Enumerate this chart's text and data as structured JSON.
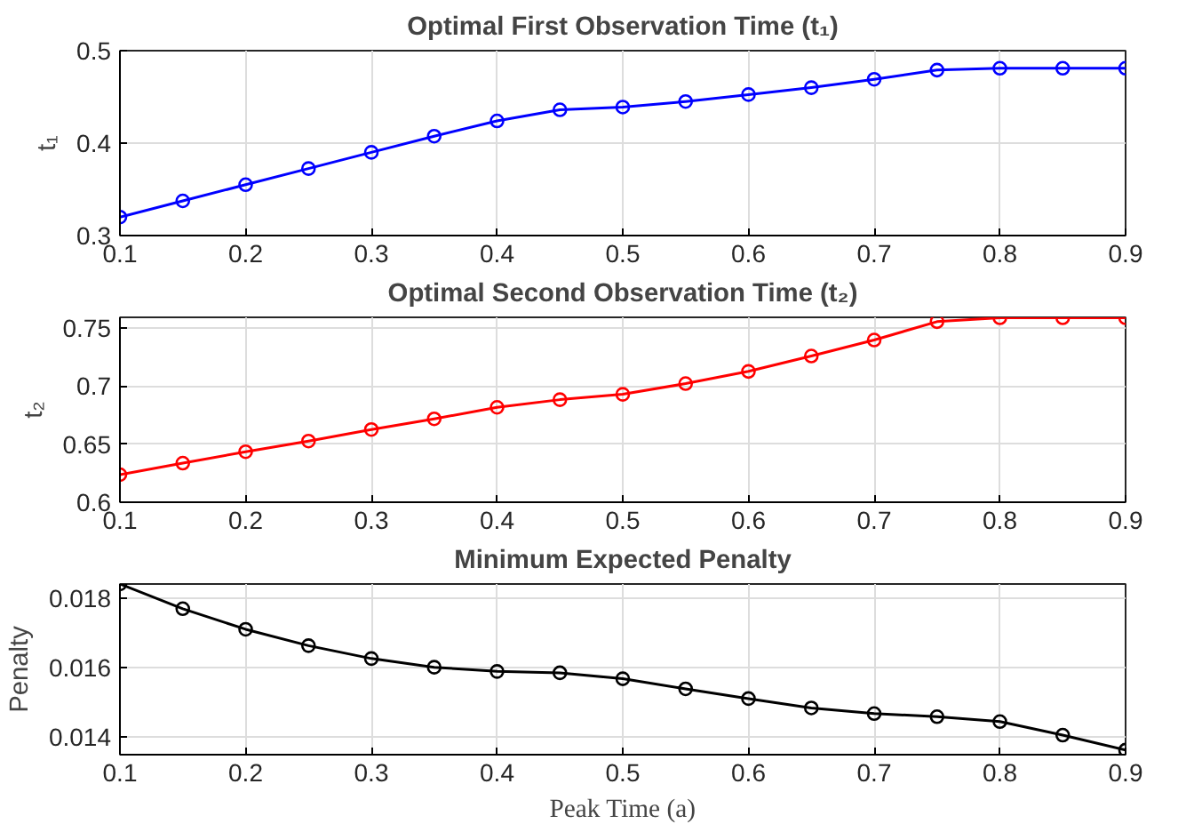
{
  "chart_data": [
    {
      "type": "line",
      "title": "Optimal First Observation Time (t₁)",
      "ylabel": "t₁",
      "x": [
        0.1,
        0.15,
        0.2,
        0.25,
        0.3,
        0.35,
        0.4,
        0.45,
        0.5,
        0.55,
        0.6,
        0.65,
        0.7,
        0.75,
        0.8,
        0.85,
        0.9
      ],
      "xlim": [
        0.1,
        0.9
      ],
      "xticks": [
        0.1,
        0.2,
        0.3,
        0.4,
        0.5,
        0.6,
        0.7,
        0.8,
        0.9
      ],
      "ylim": [
        0.3,
        0.5
      ],
      "yticks": [
        0.3,
        0.4,
        0.5
      ],
      "grid": true,
      "marker": "circle",
      "series": [
        {
          "color": "#0000ff",
          "values": [
            0.32,
            0.3375,
            0.355,
            0.3725,
            0.39,
            0.4075,
            0.424,
            0.436,
            0.439,
            0.445,
            0.4525,
            0.46,
            0.469,
            0.479,
            0.481,
            0.481,
            0.481
          ]
        }
      ]
    },
    {
      "type": "line",
      "title": "Optimal Second Observation Time (t₂)",
      "ylabel": "t₂",
      "x": [
        0.1,
        0.15,
        0.2,
        0.25,
        0.3,
        0.35,
        0.4,
        0.45,
        0.5,
        0.55,
        0.6,
        0.65,
        0.7,
        0.75,
        0.8,
        0.85,
        0.9
      ],
      "xlim": [
        0.1,
        0.9
      ],
      "xticks": [
        0.1,
        0.2,
        0.3,
        0.4,
        0.5,
        0.6,
        0.7,
        0.8,
        0.9
      ],
      "ylim": [
        0.6,
        0.759
      ],
      "yticks": [
        0.6,
        0.65,
        0.7,
        0.75
      ],
      "grid": true,
      "marker": "circle",
      "series": [
        {
          "color": "#ff0000",
          "values": [
            0.6237,
            0.6336,
            0.6434,
            0.6526,
            0.6625,
            0.6717,
            0.6816,
            0.6882,
            0.6928,
            0.702,
            0.7125,
            0.7257,
            0.7395,
            0.7553,
            0.7586,
            0.7586,
            0.7586
          ]
        }
      ]
    },
    {
      "type": "line",
      "title": "Minimum Expected Penalty",
      "xlabel": "Peak Time (a)",
      "ylabel": "Penalty",
      "x": [
        0.1,
        0.15,
        0.2,
        0.25,
        0.3,
        0.35,
        0.4,
        0.45,
        0.5,
        0.55,
        0.6,
        0.65,
        0.7,
        0.75,
        0.8,
        0.85,
        0.9
      ],
      "xlim": [
        0.1,
        0.9
      ],
      "xticks": [
        0.1,
        0.2,
        0.3,
        0.4,
        0.5,
        0.6,
        0.7,
        0.8,
        0.9
      ],
      "ylim": [
        0.0135,
        0.0184
      ],
      "yticks": [
        0.014,
        0.016,
        0.018
      ],
      "grid": true,
      "marker": "circle",
      "series": [
        {
          "color": "#000000",
          "values": [
            0.0184,
            0.01769,
            0.0171,
            0.01663,
            0.01626,
            0.01601,
            0.01589,
            0.01585,
            0.01568,
            0.01539,
            0.01511,
            0.01484,
            0.01468,
            0.01459,
            0.01445,
            0.01406,
            0.01363
          ]
        }
      ]
    }
  ]
}
